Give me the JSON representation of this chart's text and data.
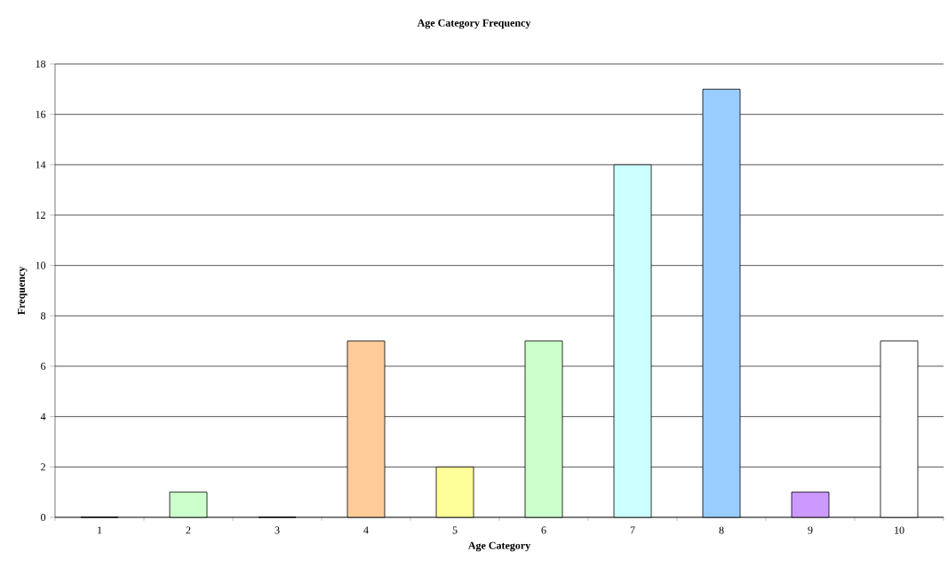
{
  "chart_data": {
    "type": "bar",
    "title": "Age Category Frequency",
    "xlabel": "Age Category",
    "ylabel": "Frequency",
    "categories": [
      "1",
      "2",
      "3",
      "4",
      "5",
      "6",
      "7",
      "8",
      "9",
      "10"
    ],
    "values": [
      0,
      1,
      0,
      7,
      2,
      7,
      14,
      17,
      1,
      7
    ],
    "colors": [
      "#ffffff",
      "#ccffcc",
      "#ffffff",
      "#ffcc99",
      "#ffff99",
      "#ccffcc",
      "#ccffff",
      "#99ccff",
      "#cc99ff",
      "#ffffff"
    ],
    "ylim": [
      0,
      18
    ],
    "yticks": [
      0,
      2,
      4,
      6,
      8,
      10,
      12,
      14,
      16,
      18
    ],
    "grid": "y"
  }
}
